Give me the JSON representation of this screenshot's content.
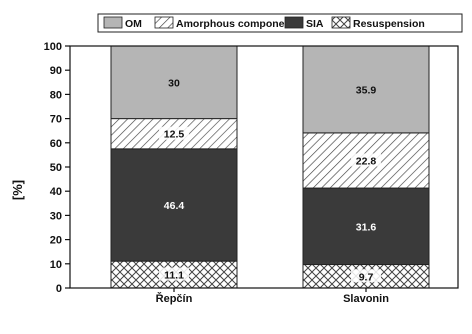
{
  "chart_data": {
    "type": "bar",
    "stacked": true,
    "ylabel": "[%]",
    "xlabel": "",
    "ylim": [
      0,
      100
    ],
    "yticks": [
      0,
      10,
      20,
      30,
      40,
      50,
      60,
      70,
      80,
      90,
      100
    ],
    "categories": [
      "Řepčín",
      "Slavonin"
    ],
    "legend_position": "top",
    "series": [
      {
        "name": "Resuspension",
        "values": [
          11.1,
          9.7
        ],
        "labels": [
          "11.1",
          "9.7"
        ],
        "pattern": "crosshatch",
        "color": "#ffffff"
      },
      {
        "name": "SIA",
        "values": [
          46.4,
          31.6
        ],
        "labels": [
          "46.4",
          "31.6"
        ],
        "pattern": "solid",
        "color": "#3a3a3a"
      },
      {
        "name": "Amorphous component",
        "values": [
          12.5,
          22.8
        ],
        "labels": [
          "12.5",
          "22.8"
        ],
        "pattern": "diagonal",
        "color": "#ffffff"
      },
      {
        "name": "OM",
        "values": [
          30,
          35.9
        ],
        "labels": [
          "30",
          "35.9"
        ],
        "pattern": "solid",
        "color": "#b5b5b5"
      }
    ],
    "legend_order": [
      "OM",
      "Amorphous component",
      "SIA",
      "Resuspension"
    ]
  }
}
